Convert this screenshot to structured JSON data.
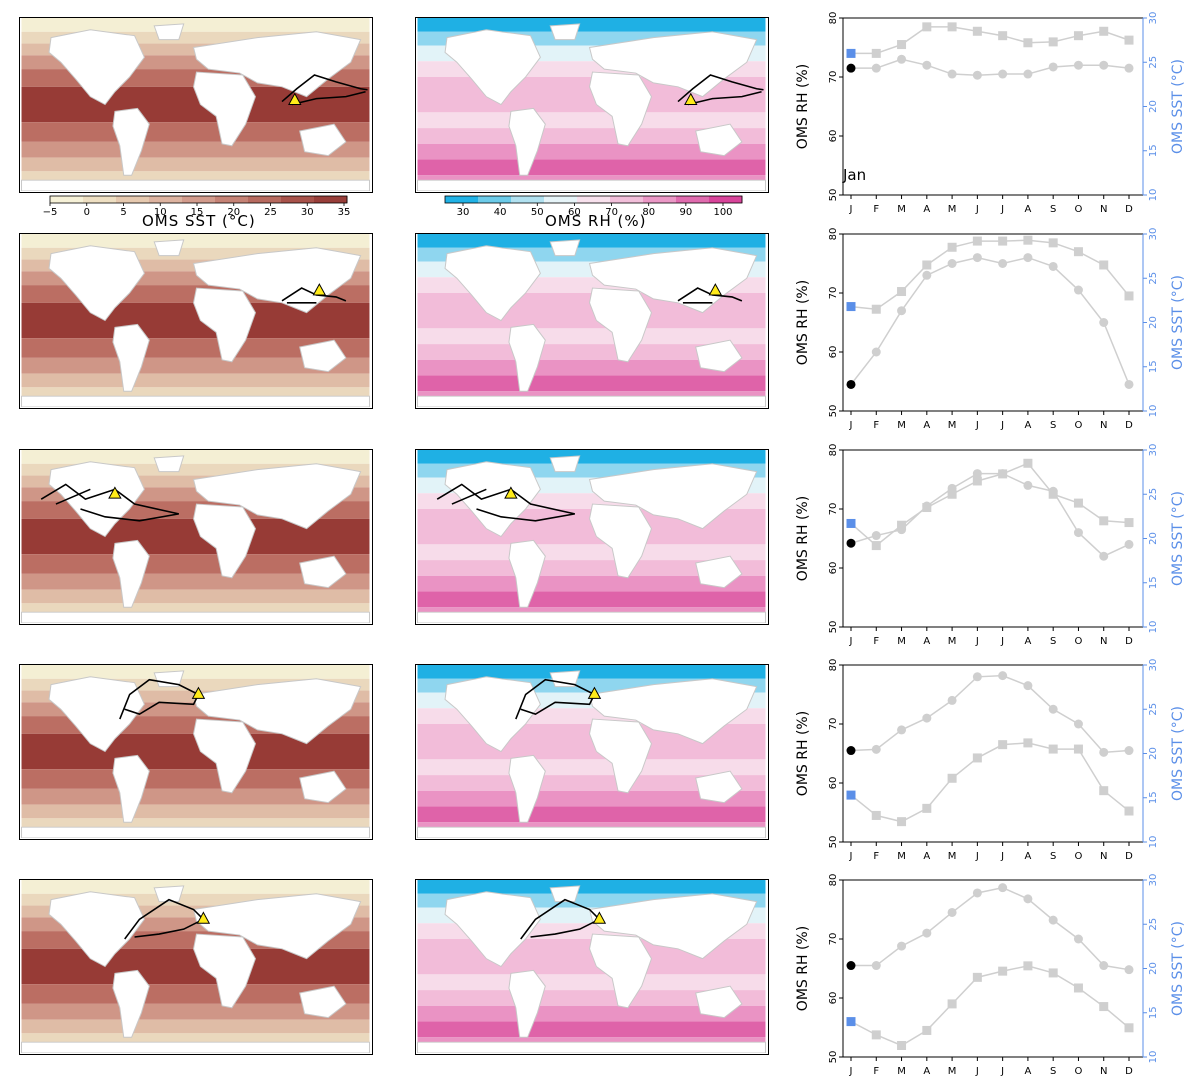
{
  "colorbars": {
    "sst": {
      "label": "OMS SST (°C)",
      "ticks": [
        "−5",
        "0",
        "5",
        "10",
        "15",
        "20",
        "25",
        "30",
        "35"
      ],
      "colors": [
        "#f6f1d7",
        "#eedfc2",
        "#e6c9af",
        "#ddb3a0",
        "#d29b8c",
        "#c58275",
        "#b76a5f",
        "#a8524a",
        "#983e39"
      ]
    },
    "rh": {
      "label": "OMS RH (%)",
      "ticks": [
        "30",
        "40",
        "50",
        "60",
        "70",
        "80",
        "90",
        "100"
      ],
      "colors": [
        "#20b2e6",
        "#6ccbe9",
        "#b1e1f0",
        "#e6f4f8",
        "#f8e1ed",
        "#f2bfda",
        "#eb98c6",
        "#e06bae",
        "#d8449a"
      ]
    }
  },
  "month_annotation": "Jan",
  "chart_data": [
    {
      "type": "line",
      "x": [
        "J",
        "F",
        "M",
        "A",
        "M",
        "J",
        "J",
        "A",
        "S",
        "O",
        "N",
        "D"
      ],
      "ylabel": "OMS RH (%)",
      "ylim": [
        50,
        80
      ],
      "yticks": [
        "50",
        "60",
        "70",
        "80"
      ],
      "y2label": "OMS SST (°C)",
      "y2lim": [
        10,
        30
      ],
      "y2ticks": [
        "10",
        "15",
        "20",
        "25",
        "30"
      ],
      "series": [
        {
          "axis": "left",
          "marker": "circle",
          "values": [
            71.5,
            71.5,
            73.0,
            72.0,
            70.5,
            70.3,
            70.5,
            70.5,
            71.7,
            72.0,
            72.0,
            71.5
          ]
        },
        {
          "axis": "right",
          "marker": "square",
          "values": [
            26.0,
            26.0,
            27.0,
            29.0,
            29.0,
            28.5,
            28.0,
            27.2,
            27.3,
            28.0,
            28.5,
            27.5
          ]
        }
      ]
    },
    {
      "type": "line",
      "x": [
        "J",
        "F",
        "M",
        "A",
        "M",
        "J",
        "J",
        "A",
        "S",
        "O",
        "N",
        "D"
      ],
      "ylabel": "OMS RH (%)",
      "ylim": [
        50,
        80
      ],
      "yticks": [
        "50",
        "60",
        "70",
        "80"
      ],
      "y2label": "OMS SST (°C)",
      "y2lim": [
        10,
        30
      ],
      "y2ticks": [
        "10",
        "15",
        "20",
        "25",
        "30"
      ],
      "series": [
        {
          "axis": "left",
          "marker": "circle",
          "values": [
            54.5,
            60.0,
            67.0,
            73.0,
            75.0,
            76.0,
            75.0,
            76.0,
            74.5,
            70.5,
            65.0,
            54.5
          ]
        },
        {
          "axis": "right",
          "marker": "square",
          "values": [
            21.8,
            21.5,
            23.5,
            26.5,
            28.5,
            29.2,
            29.2,
            29.3,
            29.0,
            28.0,
            26.5,
            23.0
          ]
        }
      ]
    },
    {
      "type": "line",
      "x": [
        "J",
        "F",
        "M",
        "A",
        "M",
        "J",
        "J",
        "A",
        "S",
        "O",
        "N",
        "D"
      ],
      "ylabel": "OMS RH (%)",
      "ylim": [
        50,
        80
      ],
      "yticks": [
        "50",
        "60",
        "70",
        "80"
      ],
      "y2label": "OMS SST (°C)",
      "y2lim": [
        10,
        30
      ],
      "y2ticks": [
        "10",
        "15",
        "20",
        "25",
        "30"
      ],
      "series": [
        {
          "axis": "left",
          "marker": "circle",
          "values": [
            64.2,
            65.5,
            66.5,
            70.5,
            73.5,
            76.0,
            76.0,
            74.0,
            73.0,
            66.0,
            62.0,
            64.0
          ]
        },
        {
          "axis": "right",
          "marker": "square",
          "values": [
            21.7,
            19.2,
            21.5,
            23.5,
            25.0,
            26.5,
            27.3,
            28.5,
            25.0,
            24.0,
            22.0,
            21.8
          ]
        }
      ]
    },
    {
      "type": "line",
      "x": [
        "J",
        "F",
        "M",
        "A",
        "M",
        "J",
        "J",
        "A",
        "S",
        "O",
        "N",
        "D"
      ],
      "ylabel": "OMS RH (%)",
      "ylim": [
        50,
        80
      ],
      "yticks": [
        "50",
        "60",
        "70",
        "80"
      ],
      "y2label": "OMS SST (°C)",
      "y2lim": [
        10,
        30
      ],
      "y2ticks": [
        "10",
        "15",
        "20",
        "25",
        "30"
      ],
      "series": [
        {
          "axis": "left",
          "marker": "circle",
          "values": [
            65.5,
            65.7,
            69.0,
            71.0,
            74.0,
            78.0,
            78.2,
            76.5,
            72.5,
            70.0,
            65.2,
            65.5
          ]
        },
        {
          "axis": "right",
          "marker": "square",
          "values": [
            15.3,
            13.0,
            12.3,
            13.8,
            17.2,
            19.5,
            21.0,
            21.2,
            20.5,
            20.5,
            15.8,
            13.5
          ]
        }
      ]
    },
    {
      "type": "line",
      "x": [
        "J",
        "F",
        "M",
        "A",
        "M",
        "J",
        "J",
        "A",
        "S",
        "O",
        "N",
        "D"
      ],
      "ylabel": "OMS RH (%)",
      "ylim": [
        50,
        80
      ],
      "yticks": [
        "50",
        "60",
        "70",
        "80"
      ],
      "y2label": "OMS SST (°C)",
      "y2lim": [
        10,
        30
      ],
      "y2ticks": [
        "10",
        "15",
        "20",
        "25",
        "30"
      ],
      "series": [
        {
          "axis": "left",
          "marker": "circle",
          "values": [
            65.5,
            65.5,
            68.8,
            71.0,
            74.5,
            77.8,
            78.7,
            76.8,
            73.2,
            70.0,
            65.5,
            64.8
          ]
        },
        {
          "axis": "right",
          "marker": "square",
          "values": [
            14.0,
            12.5,
            11.3,
            13.0,
            16.0,
            19.0,
            19.7,
            20.3,
            19.5,
            17.8,
            15.7,
            13.3
          ]
        }
      ]
    }
  ]
}
